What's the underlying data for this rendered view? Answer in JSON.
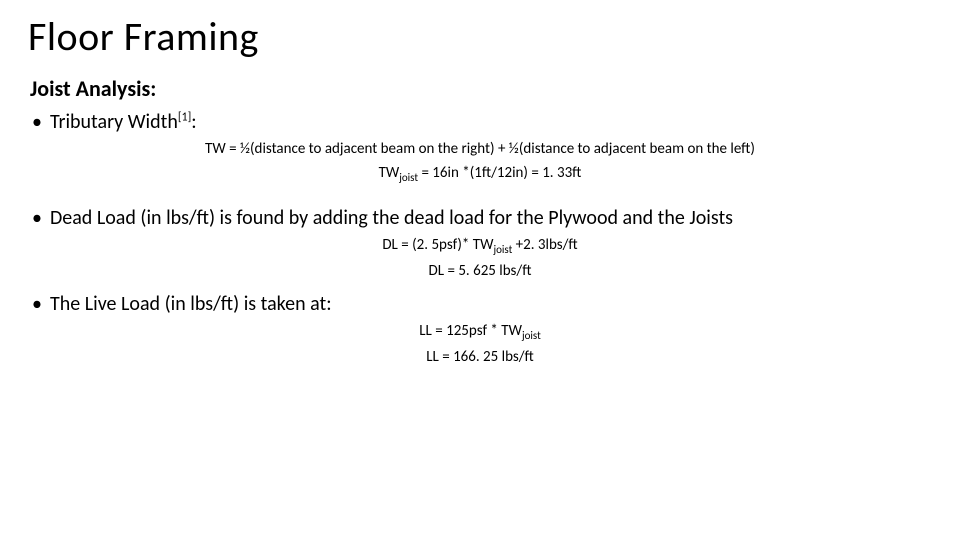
{
  "title": "Floor Framing",
  "subtitle": "Joist Analysis:",
  "bullets": {
    "b1_pre": "Tributary Width",
    "b1_sup": "[1]",
    "b1_post": ":",
    "b2": "Dead Load (in lbs/ft) is found by adding the dead load for the Plywood and the Joists",
    "b3": "The Live Load (in lbs/ft) is taken at:"
  },
  "formulas": {
    "tw_def": "TW = ½(distance to adjacent beam on the right) + ½(distance to adjacent beam on the left)",
    "tw_joist_pre": "TW",
    "tw_joist_sub": "joist",
    "tw_joist_post": " = 16in *(1ft/12in) = 1. 33ft",
    "dl_def_pre": "DL = (2. 5psf)* TW",
    "dl_def_sub": "joist",
    "dl_def_post": " +2. 3lbs/ft",
    "dl_val": "DL = 5. 625 lbs/ft",
    "ll_def_pre": "LL = 125psf * TW",
    "ll_def_sub": "joist",
    "ll_val": "LL = 166. 25 lbs/ft"
  }
}
